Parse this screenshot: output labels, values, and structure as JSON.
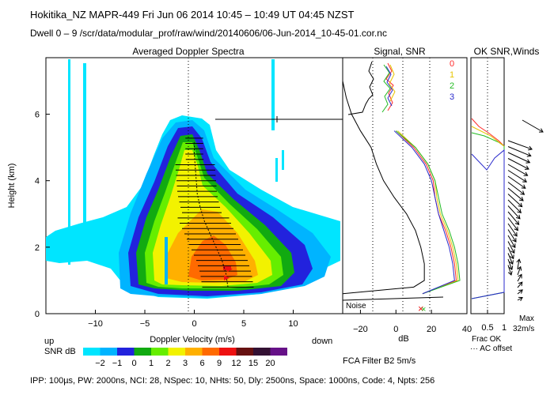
{
  "header": {
    "line1": "Hokitika_NZ   MAPR-449   Fri Jun 06 2014 10:45 – 10:49 UT 04:45 NZST",
    "line2": "Dwell   0 –   9   /scr/data/modular_prof/raw/wind/20140606/06-Jun-2014_10-45-01.cor.nc"
  },
  "panels": {
    "spectra_title": "Averaged Doppler Spectra",
    "signal_title": "Signal, SNR",
    "ok_title": "OK SNR,Winds"
  },
  "legend": {
    "items": [
      {
        "label": "0",
        "color": "#ff2a2a"
      },
      {
        "label": "1",
        "color": "#e7c400"
      },
      {
        "label": "2",
        "color": "#22bb22"
      },
      {
        "label": "3",
        "color": "#2a2acc"
      }
    ]
  },
  "labels": {
    "noise": "Noise",
    "up": "up",
    "down": "down",
    "snr_db": "SNR dB",
    "frac_ok": "Frac OK",
    "ac_offset": "··· AC offset",
    "max": "Max",
    "max_value": "32m/s",
    "fca_filter": "FCA Filter B2   5m/s"
  },
  "colorbar": {
    "ticks": [
      "−2",
      "−1",
      "0",
      "1",
      "2",
      "3",
      "6",
      "9",
      "12",
      "15",
      "20"
    ],
    "colors": [
      "#00e5ff",
      "#00b4ff",
      "#2222dd",
      "#11aa11",
      "#66ee00",
      "#f2f200",
      "#ffb000",
      "#ff6a00",
      "#ee1111",
      "#661111",
      "#331133",
      "#661188"
    ]
  },
  "footer": "IPP: 100µs,  PW: 2000ns,  NCI:  28,  NSpec: 10, NHts: 50,  Dly: 2500ns,  Space: 1000ns,  Code: 4,  Npts: 256",
  "chart_data": [
    {
      "type": "heatmap",
      "title": "Averaged Doppler Spectra",
      "xlabel": "Doppler Velocity (m/s)",
      "ylabel": "Height (km)",
      "xlim": [
        -15,
        15
      ],
      "ylim": [
        0,
        7.7
      ],
      "xticks": [
        "−10",
        "−5",
        "0",
        "5",
        "10"
      ],
      "yticks": [
        "0",
        "2",
        "4",
        "6"
      ],
      "peak_velocity_profile": {
        "height_km": [
          0.8,
          1.2,
          1.6,
          2.0,
          2.4,
          2.8,
          3.2,
          3.6,
          4.0,
          4.4,
          4.8,
          5.2
        ],
        "velocity_ms": [
          3.4,
          3.2,
          2.8,
          2.2,
          1.6,
          1.0,
          0.6,
          0.3,
          0.2,
          0.1,
          0.0,
          0.0
        ]
      }
    },
    {
      "type": "line",
      "title": "Signal, SNR",
      "xlabel": "dB",
      "xticks": [
        "−20",
        "0",
        "20",
        "40"
      ],
      "xlim": [
        -30,
        40
      ],
      "ylim": [
        0,
        7.7
      ],
      "series": [
        {
          "name": "Signal",
          "color": "#000000",
          "height_km": [
            0.6,
            0.8,
            1.0,
            1.5,
            2.0,
            2.5,
            3.0,
            3.5,
            4.0,
            4.5,
            5.0,
            5.5,
            6.0,
            6.5,
            7.0,
            7.5
          ],
          "db": [
            -30,
            10,
            16,
            16,
            14,
            11,
            6,
            -1,
            -7,
            -11,
            -14,
            -20,
            -25,
            -28,
            -30,
            -30
          ]
        },
        {
          "name": "0",
          "color": "#ff2a2a",
          "height_km": [
            0.6,
            1.0,
            1.5,
            2.0,
            2.5,
            3.0,
            3.5,
            4.0,
            4.5,
            5.0,
            5.5
          ],
          "db": [
            15,
            34,
            33,
            31,
            28,
            24,
            22,
            21,
            17,
            10,
            0
          ]
        },
        {
          "name": "1",
          "color": "#e7c400",
          "height_km": [
            0.6,
            1.0,
            1.5,
            2.0,
            2.5,
            3.0,
            3.5,
            4.0,
            4.5,
            5.0,
            5.5
          ],
          "db": [
            15,
            35,
            34,
            32,
            29,
            25,
            23,
            22,
            18,
            11,
            1
          ]
        },
        {
          "name": "2",
          "color": "#22bb22",
          "height_km": [
            0.6,
            1.0,
            1.5,
            2.0,
            2.5,
            3.0,
            3.5,
            4.0,
            4.5,
            5.0,
            5.5
          ],
          "db": [
            15,
            36,
            35,
            33,
            30,
            26,
            24,
            22,
            18,
            11,
            0
          ]
        },
        {
          "name": "3",
          "color": "#2a2acc",
          "height_km": [
            0.6,
            1.0,
            1.5,
            2.0,
            2.5,
            3.0,
            3.5,
            4.0,
            4.5,
            5.0,
            5.5
          ],
          "db": [
            15,
            33,
            32,
            30,
            27,
            24,
            22,
            20,
            16,
            9,
            -1
          ]
        }
      ]
    },
    {
      "type": "line",
      "title": "OK SNR,Winds",
      "xlabel": "Frac OK",
      "xticks": [
        "0.5",
        "1"
      ],
      "xlim": [
        0,
        1
      ],
      "ylim": [
        0,
        7.7
      ]
    }
  ]
}
